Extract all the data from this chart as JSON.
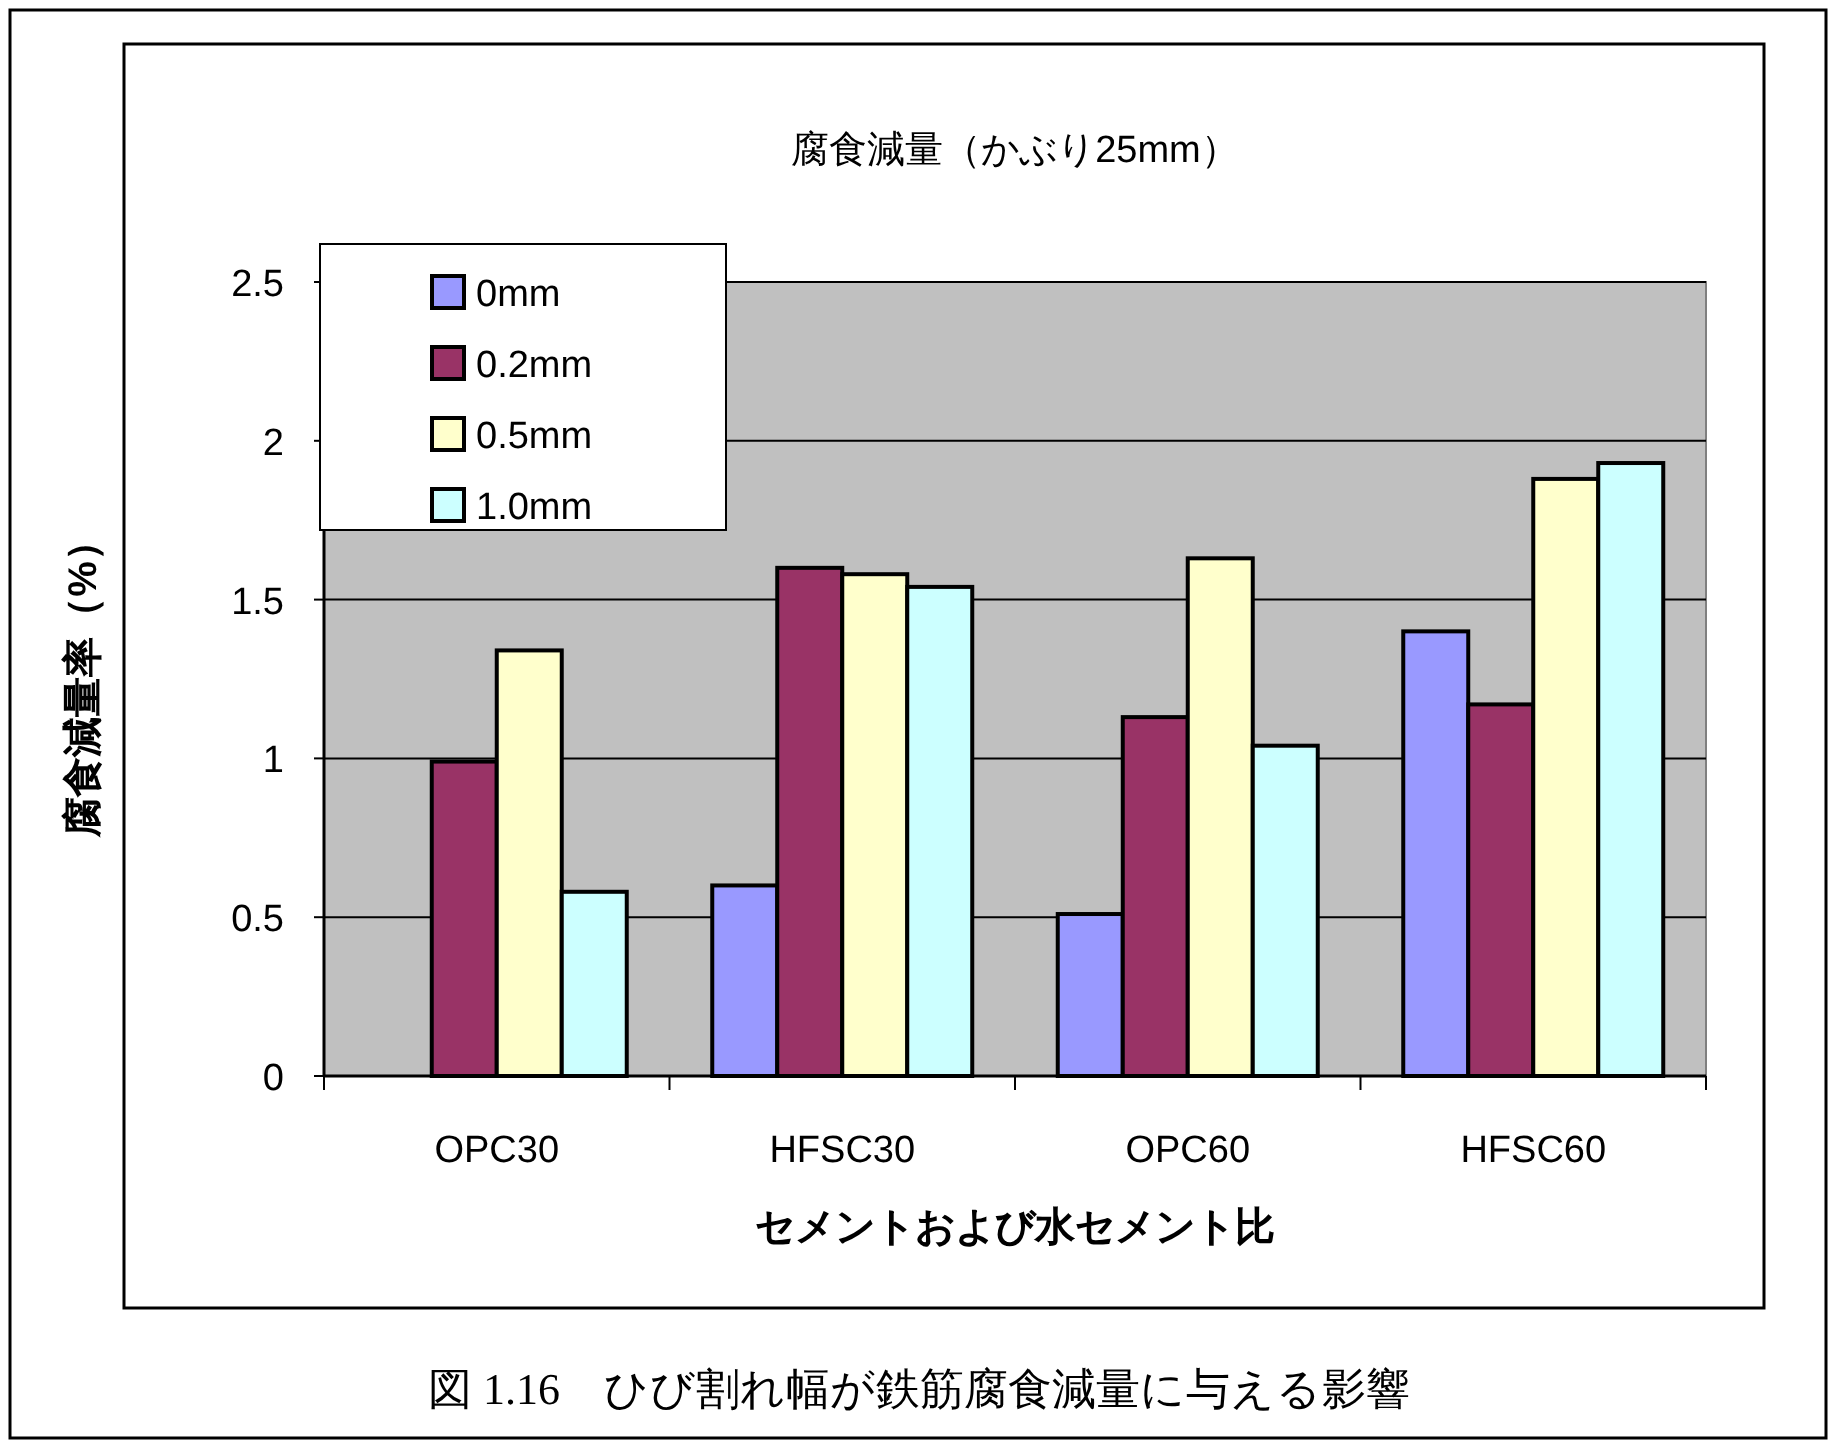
{
  "chart_data": {
    "type": "bar",
    "title": "腐食減量（かぶり25mm）",
    "xlabel": "セメントおよび水セメント比",
    "ylabel": "腐食減量率（%）",
    "categories": [
      "OPC30",
      "HFSC30",
      "OPC60",
      "HFSC60"
    ],
    "series": [
      {
        "name": "0mm",
        "color": "#9999ff",
        "values": [
          0,
          0.6,
          0.51,
          1.4
        ]
      },
      {
        "name": "0.2mm",
        "color": "#993366",
        "values": [
          0.99,
          1.6,
          1.13,
          1.17
        ]
      },
      {
        "name": "0.5mm",
        "color": "#ffffcc",
        "values": [
          1.34,
          1.58,
          1.63,
          1.88
        ]
      },
      {
        "name": "1.0mm",
        "color": "#ccffff",
        "values": [
          0.58,
          1.54,
          1.04,
          1.93
        ]
      }
    ],
    "ylim": [
      0,
      2.5
    ],
    "yticks": [
      0,
      0.5,
      1,
      1.5,
      2,
      2.5
    ],
    "grid": "y",
    "legend": "top left",
    "annotations": [
      "図 1.16　ひび割れ幅が鉄筋腐食減量に与える影響"
    ]
  }
}
